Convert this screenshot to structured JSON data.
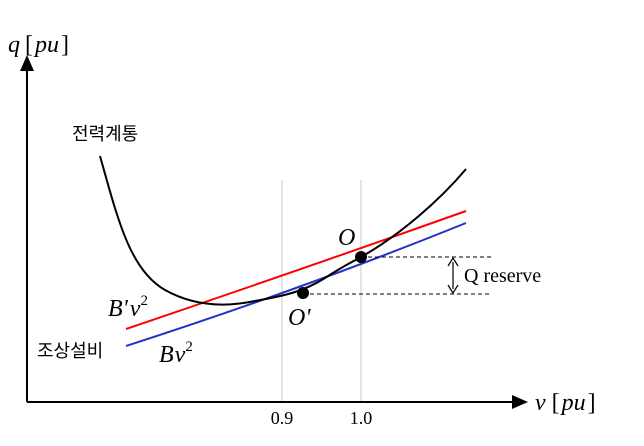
{
  "axes": {
    "y_label": {
      "symbol": "q",
      "open": "[",
      "unit": "pu",
      "close": "]"
    },
    "x_label": {
      "symbol": "v",
      "open": "[",
      "unit": "pu",
      "close": "]"
    },
    "x_ticks": [
      "0.9",
      "1.0"
    ]
  },
  "curves": {
    "system": {
      "label": "전력계통",
      "color": "#000000"
    },
    "compensator_new": {
      "label_base": "B'",
      "label_var": "v",
      "label_exp": "2",
      "color": "#ff0000"
    },
    "compensator": {
      "label_base": "B",
      "label_var": "v",
      "label_exp": "2",
      "color": "#2233cc"
    }
  },
  "device_label": "조상설비",
  "points": {
    "o": {
      "label": "O"
    },
    "o_prime": {
      "label": "O'"
    }
  },
  "reserve_label": "Q reserve"
}
